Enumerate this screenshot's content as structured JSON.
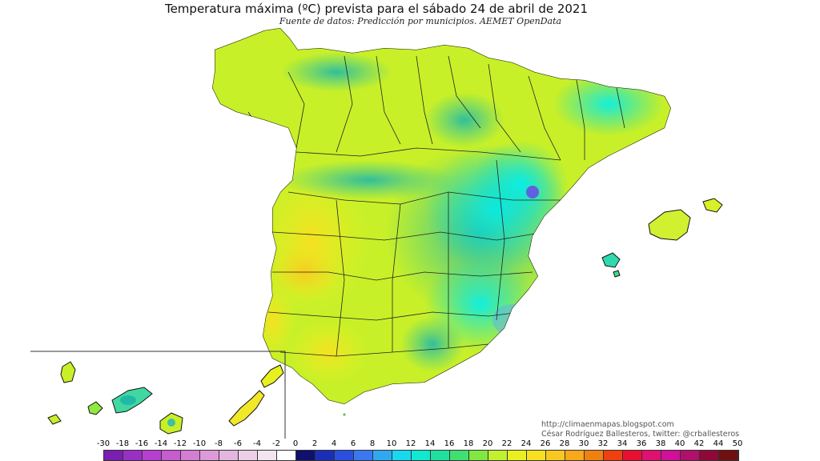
{
  "title": "Temperatura máxima (ºC) prevista para el sábado 24 de abril de 2021",
  "subtitle": "Fuente de datos: Predicción por municipios. AEMET OpenData",
  "credits": {
    "blog": "http://climaenmapas.blogspot.com",
    "author": "César Rodríguez Ballesteros, twitter: @crballesteros"
  },
  "legend": {
    "labels": [
      "-30",
      "-18",
      "-16",
      "-14",
      "-12",
      "-10",
      "-8",
      "-6",
      "-4",
      "-2",
      "0",
      "2",
      "4",
      "6",
      "8",
      "10",
      "12",
      "14",
      "16",
      "18",
      "20",
      "22",
      "24",
      "26",
      "28",
      "30",
      "32",
      "34",
      "36",
      "38",
      "40",
      "42",
      "44",
      "50"
    ],
    "colors": [
      "#7a1fb0",
      "#9a2fc4",
      "#b63fcf",
      "#c75bd0",
      "#d57cd5",
      "#dc9ad8",
      "#e2b6df",
      "#eccfe6",
      "#f3e5f0",
      "#ffffff",
      "#10106e",
      "#1a2fb5",
      "#2a4fe0",
      "#3a78f0",
      "#30a8f0",
      "#18d8f0",
      "#10e8d0",
      "#20e0a0",
      "#40e070",
      "#80e840",
      "#c0f030",
      "#e8f020",
      "#f8e020",
      "#f8c820",
      "#f8a818",
      "#f08010",
      "#f04010",
      "#e81030",
      "#e01070",
      "#d01098",
      "#b0106a",
      "#900838",
      "#701010"
    ]
  },
  "chart_data": {
    "type": "map",
    "title": "Temperatura máxima (ºC) prevista para el sábado 24 de abril de 2021",
    "units": "ºC",
    "scale_range": [
      -30,
      50
    ],
    "regions_shown": [
      "Península Ibérica (España)",
      "Islas Baleares",
      "Islas Canarias"
    ]
  }
}
